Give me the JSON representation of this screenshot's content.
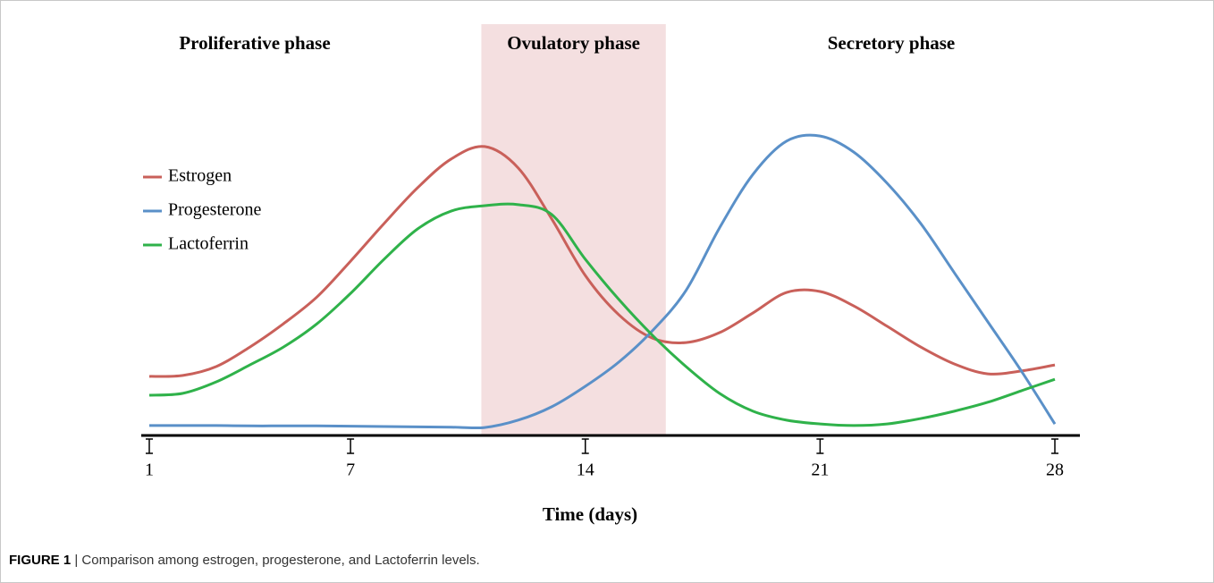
{
  "chart_data": {
    "type": "line",
    "xlabel": "Time (days)",
    "x": [
      1,
      2,
      3,
      4,
      5,
      6,
      7,
      8,
      9,
      10,
      11,
      12,
      13,
      14,
      15,
      16,
      17,
      18,
      19,
      20,
      21,
      22,
      23,
      24,
      25,
      26,
      27,
      28
    ],
    "xlim": [
      1,
      28
    ],
    "xticks": [
      1,
      7,
      14,
      21,
      28
    ],
    "ylim": [
      0,
      100
    ],
    "legend": "upper left",
    "phases": [
      {
        "label": "Proliferative phase"
      },
      {
        "label": "Ovulatory phase",
        "start": 10.9,
        "end": 16.4,
        "color": "#f4dfe0"
      },
      {
        "label": "Secretory phase"
      }
    ],
    "series": [
      {
        "name": "Estrogen",
        "color": "#c9605a",
        "values": [
          18.5,
          18.8,
          21.6,
          27.7,
          35,
          43.4,
          54.6,
          66.4,
          77.6,
          86.6,
          90.5,
          83.8,
          67.8,
          50.1,
          37.8,
          30.5,
          29.1,
          32.2,
          38.4,
          44.8,
          45.1,
          40.6,
          34.2,
          27.7,
          22.4,
          19.3,
          20.2,
          22.1
        ]
      },
      {
        "name": "Progesterone",
        "color": "#5a90c8",
        "values": [
          3.1,
          3.1,
          3.1,
          3.0,
          3.0,
          3.0,
          2.9,
          2.8,
          2.7,
          2.6,
          2.5,
          4.8,
          9.0,
          15.4,
          23.0,
          32.8,
          45.4,
          65,
          81.8,
          92.2,
          93.8,
          88.8,
          79,
          66.4,
          51,
          35.6,
          20.2,
          3.6
        ]
      },
      {
        "name": "Lactoferrin",
        "color": "#2fb24a",
        "values": [
          12.6,
          13.2,
          16.8,
          22.1,
          27.7,
          35,
          44.5,
          55.2,
          64.7,
          70.3,
          72,
          72.3,
          69.2,
          55.2,
          42.6,
          31.4,
          21.6,
          13.2,
          7.6,
          4.8,
          3.6,
          3.1,
          3.6,
          5.3,
          7.6,
          10.4,
          14,
          17.6
        ]
      }
    ]
  },
  "caption": {
    "label": "FIGURE 1",
    "text": "| Comparison among estrogen, progesterone, and Lactoferrin levels."
  }
}
